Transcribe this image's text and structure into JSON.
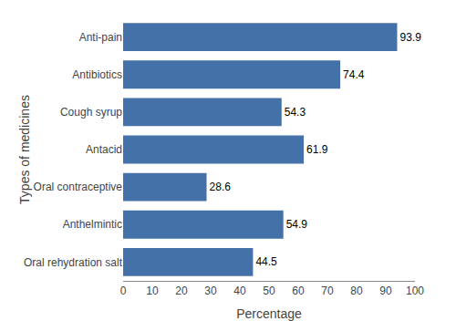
{
  "chart_data": {
    "type": "bar",
    "orientation": "horizontal",
    "categories": [
      "Oral rehydration salt",
      "Anthelmintic",
      "Oral contraceptive",
      "Antacid",
      "Cough syrup",
      "Antibiotics",
      "Anti-pain"
    ],
    "values": [
      44.5,
      54.9,
      28.6,
      61.9,
      54.3,
      74.4,
      93.9
    ],
    "color": "#4472a8",
    "xlabel": "Percentage",
    "ylabel": "Types of medicines",
    "xlim": [
      0,
      100
    ],
    "xticks": [
      0,
      10,
      20,
      30,
      40,
      50,
      60,
      70,
      80,
      90,
      100
    ],
    "data_labels": true,
    "grid": false
  }
}
